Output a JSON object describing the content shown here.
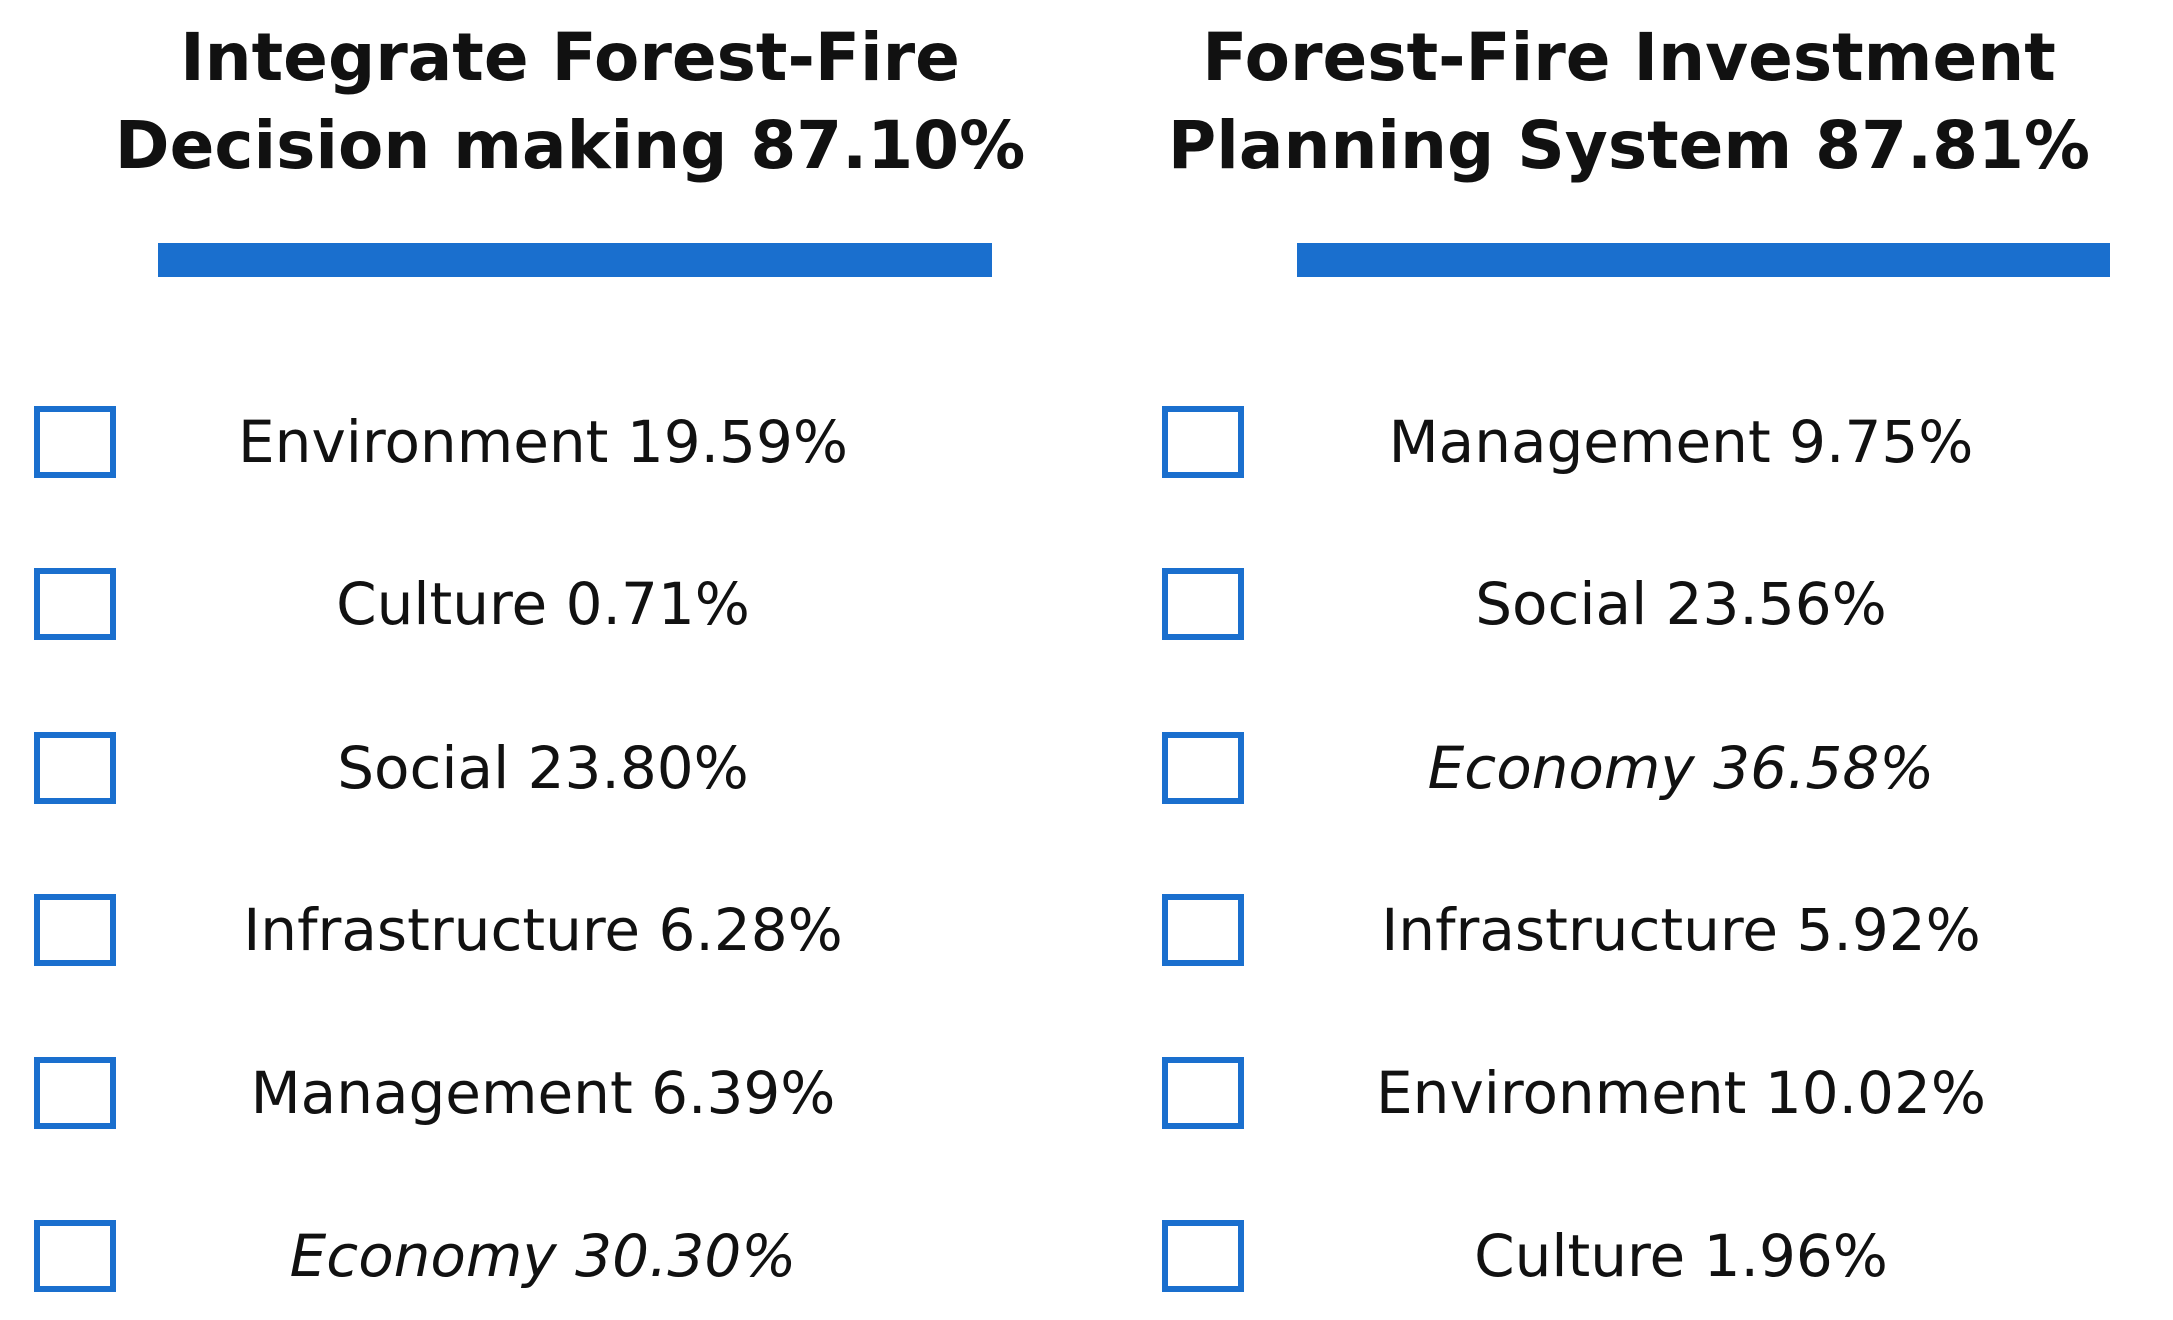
{
  "accent_color": "#1a6fce",
  "panels": [
    {
      "title_line1": "Integrate Forest-Fire",
      "title_line2": "Decision making  87.10%",
      "items": [
        {
          "label": "Environment 19.59%",
          "italic": false,
          "checked": false
        },
        {
          "label": "Culture 0.71%",
          "italic": false,
          "checked": false
        },
        {
          "label": "Social 23.80%",
          "italic": false,
          "checked": false
        },
        {
          "label": "Infrastructure 6.28%",
          "italic": false,
          "checked": false
        },
        {
          "label": "Management  6.39%",
          "italic": false,
          "checked": false
        },
        {
          "label": "Economy 30.30%",
          "italic": true,
          "checked": false
        }
      ]
    },
    {
      "title_line1": "Forest-Fire Investment",
      "title_line2": "Planning System 87.81%",
      "items": [
        {
          "label": "Management  9.75%",
          "italic": false,
          "checked": false
        },
        {
          "label": "Social 23.56%",
          "italic": false,
          "checked": false
        },
        {
          "label": "Economy 36.58%",
          "italic": true,
          "checked": false
        },
        {
          "label": "Infrastructure 5.92%",
          "italic": false,
          "checked": false
        },
        {
          "label": "Environment 10.02%",
          "italic": false,
          "checked": false
        },
        {
          "label": "Culture 1.96%",
          "italic": false,
          "checked": false
        }
      ]
    }
  ]
}
